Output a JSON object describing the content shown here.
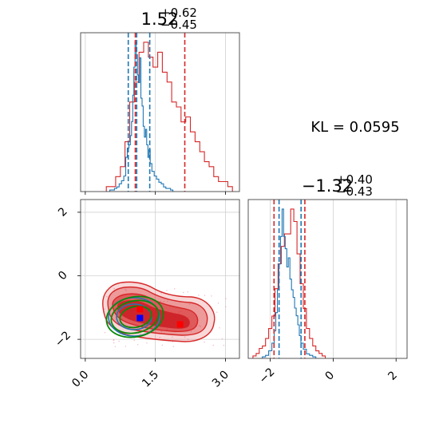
{
  "chart_data": [
    {
      "type": "histogram",
      "panel": "marginal-x",
      "title": {
        "value": "1.52",
        "upper": "+0.62",
        "lower": "−0.45"
      },
      "xlim": [
        -0.1,
        3.3
      ],
      "grid": true,
      "series": [
        {
          "color": "#1f77b4",
          "bin_centers": [
            0.5,
            0.55,
            0.6,
            0.65,
            0.7,
            0.75,
            0.8,
            0.85,
            0.88,
            0.92,
            0.95,
            0.98,
            1.0,
            1.03,
            1.05,
            1.08,
            1.1,
            1.13,
            1.15,
            1.18,
            1.2,
            1.23,
            1.25,
            1.28,
            1.3,
            1.33,
            1.35,
            1.38,
            1.4,
            1.45,
            1.5,
            1.55,
            1.6,
            1.65,
            1.7,
            1.75,
            1.8,
            1.85,
            1.9
          ],
          "counts": [
            0.0,
            0.01,
            0.01,
            0.02,
            0.03,
            0.05,
            0.07,
            0.1,
            0.22,
            0.28,
            0.3,
            0.36,
            0.45,
            0.62,
            0.8,
            0.96,
            0.88,
            0.75,
            0.7,
            0.86,
            0.6,
            0.55,
            0.42,
            0.35,
            0.4,
            0.3,
            0.22,
            0.27,
            0.18,
            0.13,
            0.1,
            0.08,
            0.06,
            0.05,
            0.03,
            0.02,
            0.02,
            0.01,
            0.0
          ],
          "quantile_lines": [
            0.92,
            1.1,
            1.38
          ]
        },
        {
          "color": "#d62728",
          "bin_centers": [
            0.5,
            0.6,
            0.7,
            0.8,
            0.9,
            1.0,
            1.1,
            1.2,
            1.3,
            1.4,
            1.5,
            1.6,
            1.7,
            1.8,
            1.9,
            2.0,
            2.1,
            2.2,
            2.3,
            2.4,
            2.5,
            2.6,
            2.7,
            2.8,
            2.9,
            3.0,
            3.1
          ],
          "counts": [
            0.01,
            0.01,
            0.03,
            0.05,
            0.1,
            0.18,
            0.22,
            0.28,
            0.3,
            0.27,
            0.25,
            0.28,
            0.24,
            0.22,
            0.18,
            0.17,
            0.14,
            0.15,
            0.12,
            0.1,
            0.08,
            0.06,
            0.05,
            0.03,
            0.02,
            0.02,
            0.01
          ],
          "quantile_lines": [
            1.07,
            2.13
          ]
        }
      ]
    },
    {
      "type": "contour",
      "panel": "joint",
      "xlim": [
        -0.1,
        3.3
      ],
      "ylim": [
        -2.6,
        2.4
      ],
      "x_ticks": [
        0.0,
        1.5,
        3.0
      ],
      "x_tick_labels": [
        "0.0",
        "1.5",
        "3.0"
      ],
      "y_ticks": [
        -2,
        0,
        2
      ],
      "y_tick_labels": [
        "−2",
        "0",
        "2"
      ],
      "grid": true,
      "reference_points": [
        {
          "color": "#ff0000",
          "x": 1.17,
          "y": -1.05
        },
        {
          "color": "#0000ff",
          "x": 1.17,
          "y": -1.33
        },
        {
          "color": "#ff0000",
          "x": 2.03,
          "y": -1.53
        }
      ]
    },
    {
      "type": "histogram",
      "panel": "marginal-y",
      "title": {
        "value": "−1.32",
        "upper": "+0.40",
        "lower": "−0.43"
      },
      "xlim": [
        -2.7,
        2.35
      ],
      "x_ticks": [
        -2,
        0,
        2
      ],
      "x_tick_labels": [
        "−2",
        "0",
        "2"
      ],
      "grid": true,
      "series": [
        {
          "color": "#1f77b4",
          "bin_centers": [
            -2.3,
            -2.2,
            -2.1,
            -2.0,
            -1.9,
            -1.85,
            -1.8,
            -1.75,
            -1.7,
            -1.65,
            -1.6,
            -1.55,
            -1.5,
            -1.45,
            -1.4,
            -1.35,
            -1.3,
            -1.25,
            -1.2,
            -1.15,
            -1.1,
            -1.05,
            -1.0,
            -0.9,
            -0.8,
            -0.7,
            -0.6,
            -0.5
          ],
          "counts": [
            0.0,
            0.01,
            0.02,
            0.05,
            0.1,
            0.18,
            0.3,
            0.45,
            0.62,
            0.8,
            0.98,
            0.8,
            0.72,
            0.6,
            0.66,
            0.52,
            0.45,
            0.4,
            0.33,
            0.28,
            0.22,
            0.15,
            0.1,
            0.06,
            0.03,
            0.02,
            0.01,
            0.0
          ],
          "quantile_lines": [
            -1.72,
            -1.02
          ]
        },
        {
          "color": "#d62728",
          "bin_centers": [
            -2.5,
            -2.4,
            -2.3,
            -2.2,
            -2.1,
            -2.0,
            -1.9,
            -1.8,
            -1.7,
            -1.6,
            -1.5,
            -1.4,
            -1.3,
            -1.2,
            -1.1,
            -1.0,
            -0.9,
            -0.8,
            -0.7,
            -0.6,
            -0.5,
            -0.4,
            -0.3
          ],
          "counts": [
            0.01,
            0.02,
            0.04,
            0.05,
            0.08,
            0.12,
            0.17,
            0.28,
            0.38,
            0.45,
            0.5,
            0.5,
            0.6,
            0.55,
            0.42,
            0.3,
            0.2,
            0.12,
            0.08,
            0.05,
            0.03,
            0.02,
            0.01
          ],
          "quantile_lines": [
            -1.88,
            -0.9
          ]
        }
      ]
    },
    {
      "type": "annotation",
      "text": "KL = 0.0595"
    }
  ]
}
